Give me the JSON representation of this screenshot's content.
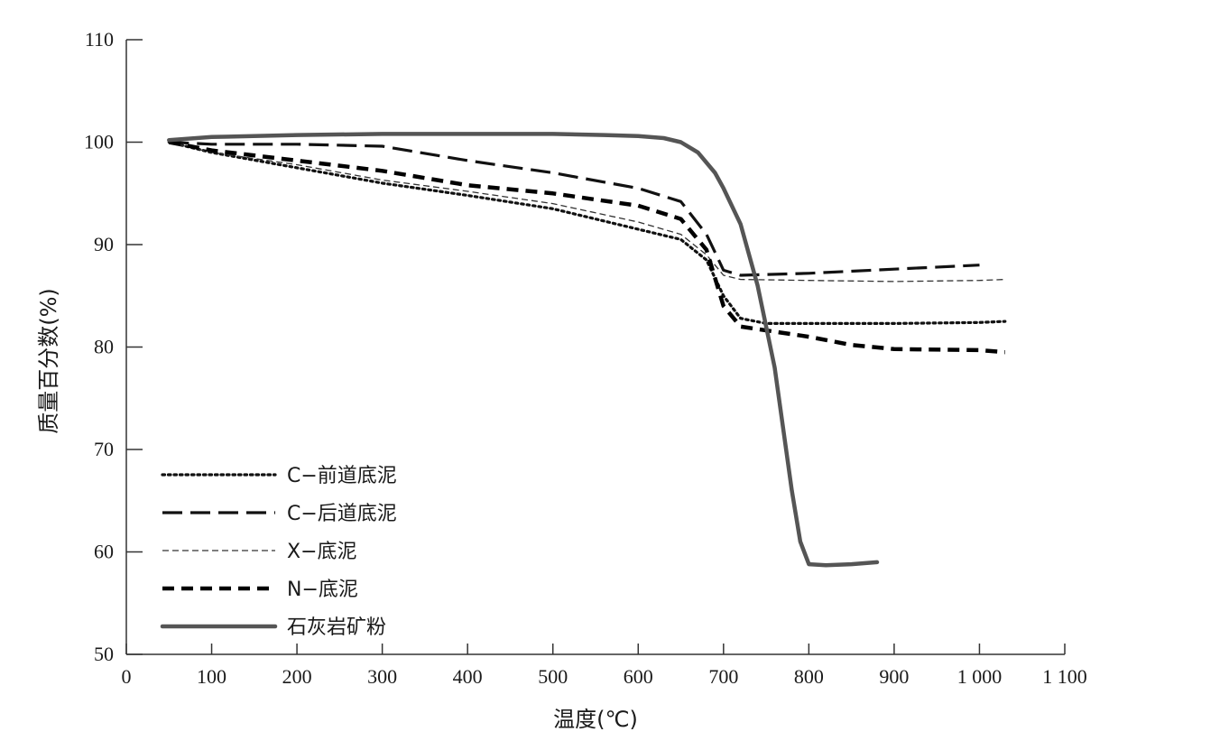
{
  "chart_data": {
    "type": "line",
    "title": "",
    "xlabel": "温度(℃)",
    "ylabel": "质量百分数(%)",
    "xlim": [
      0,
      1100
    ],
    "ylim": [
      50,
      110
    ],
    "grid": false,
    "legend_position": "bottom-left",
    "x_ticks": [
      {
        "value": 0,
        "label": "0"
      },
      {
        "value": 100,
        "label": "100"
      },
      {
        "value": 200,
        "label": "200"
      },
      {
        "value": 300,
        "label": "300"
      },
      {
        "value": 400,
        "label": "400"
      },
      {
        "value": 500,
        "label": "500"
      },
      {
        "value": 600,
        "label": "600"
      },
      {
        "value": 700,
        "label": "700"
      },
      {
        "value": 800,
        "label": "800"
      },
      {
        "value": 900,
        "label": "900"
      },
      {
        "value": 1000,
        "label": "1 000"
      },
      {
        "value": 1100,
        "label": "1 100"
      }
    ],
    "y_ticks": [
      {
        "value": 50,
        "label": "50"
      },
      {
        "value": 60,
        "label": "60"
      },
      {
        "value": 70,
        "label": "70"
      },
      {
        "value": 80,
        "label": "80"
      },
      {
        "value": 90,
        "label": "90"
      },
      {
        "value": 100,
        "label": "100"
      },
      {
        "value": 110,
        "label": "110"
      }
    ],
    "series": [
      {
        "name": "C−前道底泥",
        "style": "dotted",
        "color": "#111111",
        "x": [
          50,
          100,
          200,
          300,
          400,
          500,
          600,
          650,
          680,
          700,
          720,
          750,
          800,
          900,
          1000,
          1030
        ],
        "y": [
          100,
          99,
          97.5,
          96,
          94.8,
          93.5,
          91.5,
          90.5,
          88.5,
          85,
          82.8,
          82.3,
          82.3,
          82.3,
          82.4,
          82.5
        ]
      },
      {
        "name": "C−后道底泥",
        "style": "long-dash",
        "color": "#111111",
        "x": [
          50,
          100,
          200,
          300,
          400,
          500,
          600,
          650,
          680,
          700,
          720,
          800,
          900,
          1000
        ],
        "y": [
          100,
          99.8,
          99.8,
          99.6,
          98.2,
          97,
          95.5,
          94.2,
          91,
          87.5,
          87,
          87.2,
          87.6,
          88
        ]
      },
      {
        "name": "X−底泥",
        "style": "thin-dash",
        "color": "#333333",
        "x": [
          50,
          100,
          200,
          300,
          400,
          500,
          600,
          650,
          680,
          700,
          720,
          800,
          900,
          1000,
          1030
        ],
        "y": [
          100,
          99,
          97.8,
          96.3,
          95.2,
          94,
          92.2,
          91,
          89,
          87,
          86.6,
          86.5,
          86.4,
          86.5,
          86.6
        ]
      },
      {
        "name": "N−底泥",
        "style": "thick-dash",
        "color": "#000000",
        "x": [
          50,
          100,
          200,
          300,
          400,
          500,
          600,
          650,
          680,
          700,
          720,
          760,
          800,
          850,
          900,
          1000,
          1030
        ],
        "y": [
          100,
          99.2,
          98.2,
          97.2,
          95.8,
          95,
          93.8,
          92.5,
          89.5,
          84,
          82,
          81.5,
          81,
          80.2,
          79.8,
          79.7,
          79.5
        ]
      },
      {
        "name": "石灰岩矿粉",
        "style": "solid",
        "color": "#555555",
        "x": [
          50,
          100,
          200,
          300,
          400,
          500,
          560,
          600,
          630,
          650,
          670,
          690,
          700,
          720,
          740,
          760,
          780,
          790,
          800,
          820,
          850,
          880
        ],
        "y": [
          100.2,
          100.5,
          100.7,
          100.8,
          100.8,
          100.8,
          100.7,
          100.6,
          100.4,
          100,
          99,
          97,
          95.5,
          92,
          86,
          78,
          66,
          61,
          58.8,
          58.7,
          58.8,
          59
        ]
      }
    ]
  }
}
